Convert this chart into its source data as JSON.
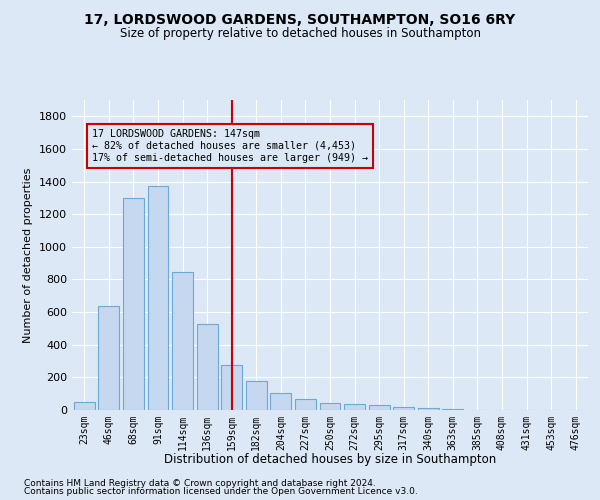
{
  "title": "17, LORDSWOOD GARDENS, SOUTHAMPTON, SO16 6RY",
  "subtitle": "Size of property relative to detached houses in Southampton",
  "xlabel": "Distribution of detached houses by size in Southampton",
  "ylabel": "Number of detached properties",
  "bar_labels": [
    "23sqm",
    "46sqm",
    "68sqm",
    "91sqm",
    "114sqm",
    "136sqm",
    "159sqm",
    "182sqm",
    "204sqm",
    "227sqm",
    "250sqm",
    "272sqm",
    "295sqm",
    "317sqm",
    "340sqm",
    "363sqm",
    "385sqm",
    "408sqm",
    "431sqm",
    "453sqm",
    "476sqm"
  ],
  "bar_values": [
    50,
    640,
    1300,
    1370,
    845,
    525,
    275,
    175,
    105,
    65,
    40,
    35,
    30,
    20,
    10,
    5,
    3,
    2,
    2,
    1,
    1
  ],
  "bar_color": "#c5d8ef",
  "bar_edgecolor": "#6aaad4",
  "vline_x": 6.0,
  "vline_color": "#cc0000",
  "annotation_line1": "17 LORDSWOOD GARDENS: 147sqm",
  "annotation_line2": "← 82% of detached houses are smaller (4,453)",
  "annotation_line3": "17% of semi-detached houses are larger (949) →",
  "annotation_box_color": "#cc0000",
  "ylim": [
    0,
    1900
  ],
  "yticks": [
    0,
    200,
    400,
    600,
    800,
    1000,
    1200,
    1400,
    1600,
    1800
  ],
  "bg_color": "#dce8f5",
  "plot_bg_color": "#dce8f5",
  "grid_color": "#ffffff",
  "footer1": "Contains HM Land Registry data © Crown copyright and database right 2024.",
  "footer2": "Contains public sector information licensed under the Open Government Licence v3.0."
}
